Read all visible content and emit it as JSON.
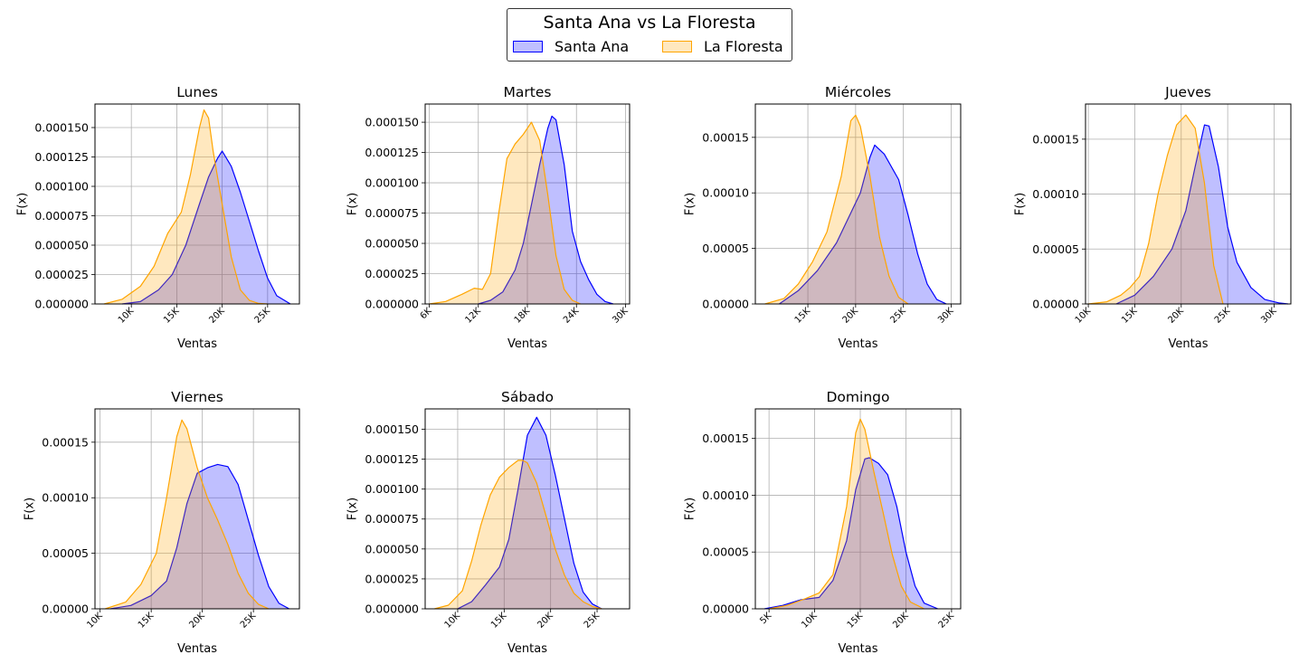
{
  "figure": {
    "legend_title": "Santa Ana vs La Floresta",
    "series": [
      {
        "name": "Santa Ana",
        "line": "#0000ff",
        "fill": "#0000ff"
      },
      {
        "name": "La Floresta",
        "line": "#ffa500",
        "fill": "#ffa500"
      }
    ]
  },
  "chart_data": [
    {
      "type": "area",
      "title": "Lunes",
      "xlabel": "Ventas",
      "ylabel": "F(x)",
      "grid": true,
      "xlim": [
        6000,
        28500
      ],
      "ylim": [
        0,
        0.00017
      ],
      "xticks": [
        10000,
        15000,
        20000,
        25000
      ],
      "xtick_labels": [
        "10K",
        "15K",
        "20K",
        "25K"
      ],
      "yticks": [
        0,
        2.5e-05,
        5e-05,
        7.5e-05,
        0.0001,
        0.000125,
        0.00015
      ],
      "ytick_labels": [
        "0.000000",
        "0.000025",
        "0.000050",
        "0.000075",
        "0.000100",
        "0.000125",
        "0.000150"
      ],
      "series": [
        {
          "name": "Santa Ana",
          "x": [
            9000,
            11000,
            13000,
            14500,
            16000,
            17500,
            18500,
            19500,
            20000,
            21000,
            22000,
            23000,
            24000,
            25000,
            26000,
            27500
          ],
          "y": [
            0,
            2e-06,
            1.2e-05,
            2.5e-05,
            5e-05,
            8.5e-05,
            0.000108,
            0.000124,
            0.00013,
            0.000117,
            9.5e-05,
            7e-05,
            4.5e-05,
            2.2e-05,
            7e-06,
            0
          ]
        },
        {
          "name": "La Floresta",
          "x": [
            7000,
            9000,
            11000,
            12500,
            14000,
            15500,
            16500,
            17500,
            18000,
            18500,
            19000,
            20000,
            21000,
            22000,
            23000,
            24000,
            25000
          ],
          "y": [
            0,
            4e-06,
            1.5e-05,
            3.2e-05,
            6e-05,
            7.8e-05,
            0.00011,
            0.00015,
            0.000165,
            0.000158,
            0.00013,
            8.5e-05,
            4e-05,
            1.2e-05,
            3e-06,
            5e-07,
            0
          ]
        }
      ]
    },
    {
      "type": "area",
      "title": "Martes",
      "xlabel": "Ventas",
      "ylabel": "F(x)",
      "grid": true,
      "xlim": [
        5500,
        30500
      ],
      "ylim": [
        0,
        0.000165
      ],
      "xticks": [
        6000,
        12000,
        18000,
        24000,
        30000
      ],
      "xtick_labels": [
        "6K",
        "12K",
        "18K",
        "24K",
        "30K"
      ],
      "yticks": [
        0,
        2.5e-05,
        5e-05,
        7.5e-05,
        0.0001,
        0.000125,
        0.00015
      ],
      "ytick_labels": [
        "0.000000",
        "0.000025",
        "0.000050",
        "0.000075",
        "0.000100",
        "0.000125",
        "0.000150"
      ],
      "series": [
        {
          "name": "Santa Ana",
          "x": [
            12000,
            13500,
            15000,
            16500,
            17500,
            18500,
            19500,
            20500,
            21000,
            21500,
            22500,
            23500,
            24500,
            25500,
            26500,
            27500,
            28500
          ],
          "y": [
            0,
            3e-06,
            1e-05,
            2.8e-05,
            5e-05,
            8.2e-05,
            0.000115,
            0.000145,
            0.000155,
            0.000152,
            0.000115,
            6e-05,
            3.5e-05,
            2e-05,
            8e-06,
            2e-06,
            0
          ]
        },
        {
          "name": "La Floresta",
          "x": [
            6000,
            8000,
            10000,
            11500,
            12500,
            13500,
            14500,
            15500,
            16500,
            17500,
            18500,
            19500,
            20500,
            21500,
            22500,
            23500,
            24500
          ],
          "y": [
            0,
            2e-06,
            8e-06,
            1.3e-05,
            1.2e-05,
            2.5e-05,
            7.5e-05,
            0.00012,
            0.000132,
            0.00014,
            0.00015,
            0.000135,
            9e-05,
            4e-05,
            1.2e-05,
            3e-06,
            0
          ]
        }
      ]
    },
    {
      "type": "area",
      "title": "Miércoles",
      "xlabel": "Ventas",
      "ylabel": "F(x)",
      "grid": true,
      "xlim": [
        9500,
        31000
      ],
      "ylim": [
        0,
        0.00018
      ],
      "xticks": [
        15000,
        20000,
        25000,
        30000
      ],
      "xtick_labels": [
        "15K",
        "20K",
        "25K",
        "30K"
      ],
      "yticks": [
        0,
        5e-05,
        0.0001,
        0.00015
      ],
      "ytick_labels": [
        "0.00000",
        "0.00005",
        "0.00010",
        "0.00015"
      ],
      "series": [
        {
          "name": "Santa Ana",
          "x": [
            12000,
            14000,
            16000,
            18000,
            19500,
            20500,
            21500,
            22000,
            23000,
            24500,
            25500,
            26500,
            27500,
            28500,
            29500
          ],
          "y": [
            0,
            1.2e-05,
            3e-05,
            5.5e-05,
            8.2e-05,
            0.0001,
            0.000132,
            0.000143,
            0.000135,
            0.000112,
            8e-05,
            4.5e-05,
            1.8e-05,
            4e-06,
            0
          ]
        },
        {
          "name": "La Floresta",
          "x": [
            10500,
            12500,
            14000,
            15500,
            17000,
            18500,
            19500,
            20000,
            20500,
            21500,
            22500,
            23500,
            24500,
            25500
          ],
          "y": [
            0,
            5e-06,
            1.8e-05,
            3.8e-05,
            6.5e-05,
            0.000115,
            0.000165,
            0.00017,
            0.00016,
            0.000115,
            6e-05,
            2.5e-05,
            6e-06,
            0
          ]
        }
      ]
    },
    {
      "type": "area",
      "title": "Jueves",
      "xlabel": "Ventas",
      "ylabel": "F(x)",
      "grid": true,
      "xlim": [
        9700,
        31800
      ],
      "ylim": [
        0,
        0.000182
      ],
      "xticks": [
        10000,
        15000,
        20000,
        25000,
        30000
      ],
      "xtick_labels": [
        "10K",
        "15K",
        "20K",
        "25K",
        "30K"
      ],
      "yticks": [
        0,
        5e-05,
        0.0001,
        0.00015
      ],
      "ytick_labels": [
        "0.00000",
        "0.00005",
        "0.00010",
        "0.00015"
      ],
      "series": [
        {
          "name": "Santa Ana",
          "x": [
            13000,
            15000,
            17000,
            19000,
            20500,
            21500,
            22500,
            23000,
            24000,
            25000,
            26000,
            27500,
            29000,
            30500,
            31500
          ],
          "y": [
            0,
            8e-06,
            2.5e-05,
            5e-05,
            8.5e-05,
            0.000125,
            0.000163,
            0.000162,
            0.000125,
            7e-05,
            3.8e-05,
            1.5e-05,
            4e-06,
            1e-06,
            0
          ]
        },
        {
          "name": "La Floresta",
          "x": [
            10000,
            12000,
            13500,
            14500,
            15500,
            16500,
            17500,
            18500,
            19500,
            20500,
            21500,
            22500,
            23500,
            24500
          ],
          "y": [
            0,
            2e-06,
            8e-06,
            1.5e-05,
            2.5e-05,
            5.5e-05,
            0.0001,
            0.000135,
            0.000163,
            0.000172,
            0.00016,
            0.00011,
            3.5e-05,
            0
          ]
        }
      ]
    },
    {
      "type": "area",
      "title": "Viernes",
      "xlabel": "Ventas",
      "ylabel": "F(x)",
      "grid": true,
      "xlim": [
        9500,
        29500
      ],
      "ylim": [
        0,
        0.00018
      ],
      "xticks": [
        10000,
        15000,
        20000,
        25000
      ],
      "xtick_labels": [
        "10K",
        "15K",
        "20K",
        "25K"
      ],
      "yticks": [
        0,
        5e-05,
        0.0001,
        0.00015
      ],
      "ytick_labels": [
        "0.00000",
        "0.00005",
        "0.00010",
        "0.00015"
      ],
      "series": [
        {
          "name": "Santa Ana",
          "x": [
            11000,
            13000,
            15000,
            16500,
            17500,
            18500,
            19500,
            20500,
            21500,
            22500,
            23500,
            24500,
            25500,
            26500,
            27500,
            28500
          ],
          "y": [
            0,
            3e-06,
            1.2e-05,
            2.5e-05,
            5.5e-05,
            9.5e-05,
            0.000122,
            0.000127,
            0.00013,
            0.000128,
            0.000112,
            8e-05,
            4.8e-05,
            2e-05,
            5e-06,
            0
          ]
        },
        {
          "name": "La Floresta",
          "x": [
            10500,
            12500,
            14000,
            15500,
            16500,
            17500,
            18000,
            18500,
            19500,
            20500,
            21500,
            22500,
            23500,
            24500,
            25500,
            26500
          ],
          "y": [
            0,
            6e-06,
            2.2e-05,
            5e-05,
            0.0001,
            0.000155,
            0.00017,
            0.000162,
            0.000127,
            0.0001,
            8e-05,
            5.8e-05,
            3.2e-05,
            1.4e-05,
            4e-06,
            0
          ]
        }
      ]
    },
    {
      "type": "area",
      "title": "Sábado",
      "xlabel": "Ventas",
      "ylabel": "F(x)",
      "grid": true,
      "xlim": [
        6500,
        28500
      ],
      "ylim": [
        0,
        0.000167
      ],
      "xticks": [
        10000,
        15000,
        20000,
        25000
      ],
      "xtick_labels": [
        "10K",
        "15K",
        "20K",
        "25K"
      ],
      "yticks": [
        0,
        2.5e-05,
        5e-05,
        7.5e-05,
        0.0001,
        0.000125,
        0.00015
      ],
      "ytick_labels": [
        "0.000000",
        "0.000025",
        "0.000050",
        "0.000075",
        "0.000100",
        "0.000125",
        "0.000150"
      ],
      "series": [
        {
          "name": "Santa Ana",
          "x": [
            10000,
            11500,
            13000,
            14500,
            15500,
            16500,
            17500,
            18500,
            19500,
            20500,
            21500,
            22500,
            23500,
            24500,
            25500
          ],
          "y": [
            0,
            6e-06,
            2e-05,
            3.5e-05,
            5.8e-05,
            0.0001,
            0.000145,
            0.00016,
            0.000145,
            0.000112,
            7.5e-05,
            3.8e-05,
            1.4e-05,
            4e-06,
            0
          ]
        },
        {
          "name": "La Floresta",
          "x": [
            7500,
            9000,
            10500,
            11500,
            12500,
            13500,
            14500,
            15500,
            16500,
            17000,
            17500,
            18500,
            19500,
            20500,
            21500,
            22500,
            23500,
            24500,
            25500
          ],
          "y": [
            0,
            3e-06,
            1.5e-05,
            4e-05,
            7e-05,
            9.5e-05,
            0.00011,
            0.000118,
            0.000124,
            0.000124,
            0.000122,
            0.000105,
            7.8e-05,
            5e-05,
            2.8e-05,
            1.3e-05,
            6e-06,
            2e-06,
            0
          ]
        }
      ]
    },
    {
      "type": "area",
      "title": "Domingo",
      "xlabel": "Ventas",
      "ylabel": "F(x)",
      "grid": true,
      "xlim": [
        3500,
        26000
      ],
      "ylim": [
        0,
        0.000176
      ],
      "xticks": [
        5000,
        10000,
        15000,
        20000,
        25000
      ],
      "xtick_labels": [
        "5K",
        "10K",
        "15K",
        "20K",
        "25K"
      ],
      "yticks": [
        0,
        5e-05,
        0.0001,
        0.00015
      ],
      "ytick_labels": [
        "0.00000",
        "0.00005",
        "0.00010",
        "0.00015"
      ],
      "series": [
        {
          "name": "Santa Ana",
          "x": [
            4500,
            6500,
            8500,
            10500,
            12000,
            13500,
            14500,
            15500,
            16000,
            17000,
            18000,
            19000,
            20000,
            21000,
            22000,
            23500
          ],
          "y": [
            0,
            3e-06,
            8e-06,
            1e-05,
            2.5e-05,
            6e-05,
            0.000105,
            0.000132,
            0.000133,
            0.000128,
            0.000118,
            9e-05,
            5e-05,
            2e-05,
            5e-06,
            0
          ]
        },
        {
          "name": "La Floresta",
          "x": [
            5000,
            7000,
            9000,
            10500,
            12000,
            13500,
            14500,
            15000,
            15500,
            16500,
            17500,
            18500,
            19500,
            20500,
            22000
          ],
          "y": [
            0,
            3e-06,
            9e-06,
            1.4e-05,
            3e-05,
            9e-05,
            0.000155,
            0.000167,
            0.000158,
            0.00012,
            8.5e-05,
            4.8e-05,
            2e-05,
            6e-06,
            0
          ]
        }
      ]
    }
  ]
}
